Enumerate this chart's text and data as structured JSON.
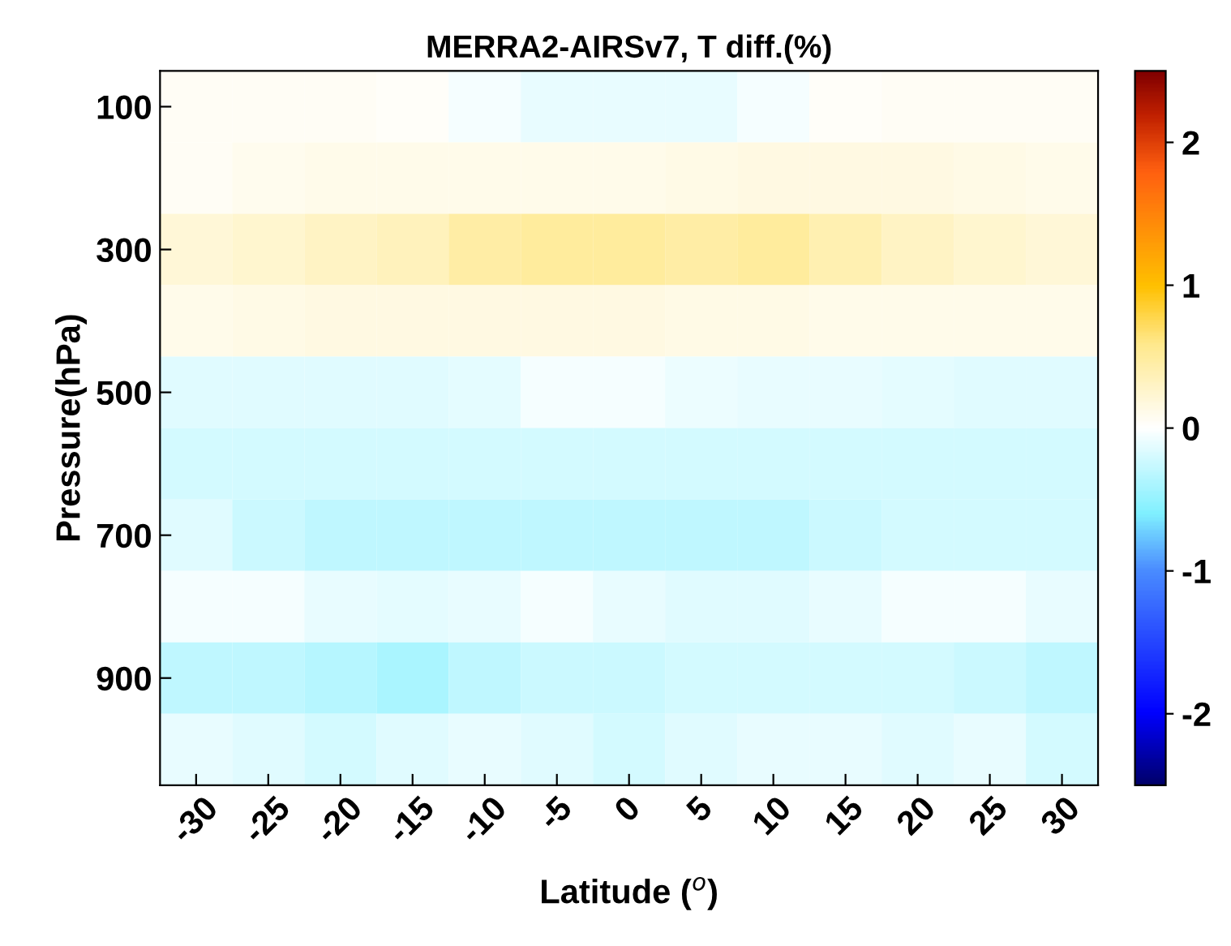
{
  "chart_data": {
    "type": "heatmap",
    "title": "MERRA2-AIRSv7, T diff.(%)",
    "xlabel": "Latitude ($^{o}$)",
    "ylabel": "Pressure(hPa)",
    "categories": [
      "-30",
      "-25",
      "-20",
      "-15",
      "-10",
      "-5",
      "0",
      "5",
      "10",
      "15",
      "20",
      "25",
      "30"
    ],
    "y_categories": [
      "100",
      null,
      "300",
      null,
      "500",
      null,
      "700",
      null,
      "900",
      null
    ],
    "cells": [
      [
        0.05,
        0.05,
        0.05,
        0.03,
        -0.05,
        -0.1,
        -0.1,
        -0.1,
        -0.05,
        0.02,
        0.05,
        0.05,
        0.05
      ],
      [
        0.05,
        0.08,
        0.1,
        0.1,
        0.1,
        0.1,
        0.1,
        0.12,
        0.15,
        0.15,
        0.15,
        0.12,
        0.1
      ],
      [
        0.2,
        0.25,
        0.3,
        0.35,
        0.45,
        0.5,
        0.5,
        0.45,
        0.5,
        0.4,
        0.3,
        0.25,
        0.2
      ],
      [
        0.1,
        0.12,
        0.15,
        0.15,
        0.15,
        0.15,
        0.15,
        0.12,
        0.12,
        0.1,
        0.1,
        0.1,
        0.1
      ],
      [
        -0.15,
        -0.15,
        -0.15,
        -0.15,
        -0.12,
        -0.05,
        -0.05,
        -0.08,
        -0.1,
        -0.1,
        -0.12,
        -0.15,
        -0.15
      ],
      [
        -0.2,
        -0.2,
        -0.2,
        -0.2,
        -0.2,
        -0.2,
        -0.2,
        -0.2,
        -0.2,
        -0.2,
        -0.2,
        -0.2,
        -0.2
      ],
      [
        -0.15,
        -0.25,
        -0.3,
        -0.3,
        -0.3,
        -0.3,
        -0.3,
        -0.3,
        -0.3,
        -0.25,
        -0.2,
        -0.2,
        -0.2
      ],
      [
        -0.05,
        -0.05,
        -0.1,
        -0.12,
        -0.1,
        -0.05,
        -0.1,
        -0.15,
        -0.15,
        -0.1,
        -0.05,
        -0.05,
        -0.1
      ],
      [
        -0.3,
        -0.3,
        -0.35,
        -0.4,
        -0.3,
        -0.25,
        -0.25,
        -0.2,
        -0.2,
        -0.2,
        -0.2,
        -0.25,
        -0.3
      ],
      [
        -0.1,
        -0.15,
        -0.2,
        -0.15,
        -0.1,
        -0.15,
        -0.2,
        -0.15,
        -0.1,
        -0.1,
        -0.15,
        -0.1,
        -0.2
      ]
    ],
    "clim": [
      -2.5,
      2.5
    ],
    "cticks": [
      -2,
      -1,
      0,
      1,
      2
    ]
  }
}
